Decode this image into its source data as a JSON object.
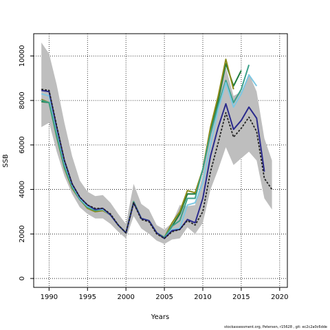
{
  "chart_data": {
    "type": "line",
    "title": "",
    "xlabel": "Years",
    "ylabel": "SSB",
    "xlim": [
      1988,
      2021
    ],
    "ylim": [
      -400,
      11000
    ],
    "x_ticks": [
      1990,
      1995,
      2000,
      2005,
      2010,
      2015,
      2020
    ],
    "y_ticks": [
      0,
      2000,
      4000,
      6000,
      8000,
      10000
    ],
    "grid": "dotted",
    "colors": {
      "band": "#bebebe",
      "grid": "#000000",
      "darkgreen": "#1b7a3c",
      "olive": "#8a8a1a",
      "teal": "#3aa08a",
      "lightblue": "#7ec8e3",
      "navy": "#2a2a8c",
      "black": "#222222"
    },
    "band": {
      "x": [
        1989,
        1990,
        1991,
        1992,
        1993,
        1994,
        1995,
        1996,
        1997,
        1998,
        1999,
        2000,
        2001,
        2002,
        2003,
        2004,
        2005,
        2006,
        2007,
        2008,
        2009,
        2010,
        2011,
        2012,
        2013,
        2014,
        2015,
        2016,
        2017,
        2018,
        2019
      ],
      "upper": [
        10600,
        10100,
        8700,
        7000,
        5500,
        4400,
        3900,
        3700,
        3750,
        3400,
        2900,
        2450,
        4250,
        3350,
        3100,
        2400,
        2200,
        2500,
        3300,
        3250,
        3300,
        4700,
        6800,
        8200,
        9500,
        8200,
        8400,
        9200,
        8400,
        6300,
        5300
      ],
      "lower": [
        6800,
        7000,
        5700,
        4600,
        3800,
        3200,
        2900,
        2700,
        2700,
        2450,
        2100,
        1800,
        2800,
        2250,
        2000,
        1700,
        1550,
        1750,
        1800,
        2300,
        2000,
        2500,
        4000,
        4900,
        5900,
        5100,
        5400,
        5700,
        5300,
        3600,
        3100
      ]
    },
    "series": [
      {
        "color": "darkgreen",
        "x": [
          1989,
          1990,
          1991,
          1992,
          1993,
          1994,
          1995,
          1996,
          1997,
          1998,
          1999,
          2000,
          2001,
          2002,
          2003,
          2004,
          2005,
          2006,
          2007,
          2008,
          2009,
          2010,
          2011,
          2012,
          2013,
          2014,
          2015
        ],
        "values": [
          7950,
          7900,
          6400,
          5000,
          4100,
          3550,
          3200,
          3050,
          3100,
          2850,
          2400,
          2050,
          3450,
          2700,
          2600,
          2050,
          1850,
          2350,
          2900,
          3800,
          3800,
          4900,
          6700,
          8000,
          9650,
          8650,
          9350
        ]
      },
      {
        "color": "olive",
        "x": [
          1989,
          1990,
          1991,
          1992,
          1993,
          1994,
          1995,
          1996,
          1997,
          1998,
          1999,
          2000,
          2001,
          2002,
          2003,
          2004,
          2005,
          2006,
          2007,
          2008,
          2009,
          2010,
          2011,
          2012,
          2013,
          2014
        ],
        "values": [
          8050,
          7900,
          6350,
          4950,
          4050,
          3550,
          3150,
          3000,
          3050,
          2850,
          2400,
          2050,
          3450,
          2700,
          2600,
          2050,
          1850,
          2500,
          3000,
          3950,
          3850,
          4900,
          6800,
          8200,
          9850,
          8500
        ]
      },
      {
        "color": "teal",
        "x": [
          1989,
          1990,
          1991,
          1992,
          1993,
          1994,
          1995,
          1996,
          1997,
          1998,
          1999,
          2000,
          2001,
          2002,
          2003,
          2004,
          2005,
          2006,
          2007,
          2008,
          2009,
          2010,
          2011,
          2012,
          2013,
          2014,
          2015,
          2016
        ],
        "values": [
          8000,
          7900,
          6400,
          5000,
          4100,
          3550,
          3200,
          3050,
          3100,
          2850,
          2400,
          2050,
          3450,
          2700,
          2600,
          2050,
          1850,
          2350,
          2600,
          3600,
          3600,
          4900,
          6500,
          7800,
          8900,
          7900,
          8500,
          9600
        ]
      },
      {
        "color": "lightblue",
        "x": [
          1989,
          1990,
          1991,
          1992,
          1993,
          1994,
          1995,
          1996,
          1997,
          1998,
          1999,
          2000,
          2001,
          2002,
          2003,
          2004,
          2005,
          2006,
          2007,
          2008,
          2009,
          2010,
          2011,
          2012,
          2013,
          2014,
          2015,
          2016,
          2017
        ],
        "values": [
          8300,
          8200,
          6700,
          5200,
          4200,
          3600,
          3250,
          3100,
          3100,
          2850,
          2400,
          2050,
          3400,
          2700,
          2600,
          2050,
          1800,
          2200,
          2250,
          3300,
          3400,
          4300,
          6000,
          7600,
          8800,
          7700,
          8300,
          9150,
          8650
        ]
      },
      {
        "color": "navy",
        "x": [
          1989,
          1990,
          1991,
          1992,
          1993,
          1994,
          1995,
          1996,
          1997,
          1998,
          1999,
          2000,
          2001,
          2002,
          2003,
          2004,
          2005,
          2006,
          2007,
          2008,
          2009,
          2010,
          2011,
          2012,
          2013,
          2014,
          2015,
          2016,
          2017,
          2018
        ],
        "values": [
          8450,
          8400,
          6800,
          5300,
          4250,
          3650,
          3300,
          3100,
          3150,
          2850,
          2400,
          2050,
          3400,
          2700,
          2600,
          2050,
          1800,
          2150,
          2200,
          2650,
          2500,
          3600,
          5500,
          6800,
          7850,
          6700,
          7100,
          7700,
          7200,
          4800
        ]
      },
      {
        "color": "black",
        "dashed": true,
        "x": [
          1989,
          1990,
          1991,
          1992,
          1993,
          1994,
          1995,
          1996,
          1997,
          1998,
          1999,
          2000,
          2001,
          2002,
          2003,
          2004,
          2005,
          2006,
          2007,
          2008,
          2009,
          2010,
          2011,
          2012,
          2013,
          2014,
          2015,
          2016,
          2017,
          2018,
          2019
        ],
        "values": [
          8500,
          8450,
          6850,
          5300,
          4250,
          3650,
          3300,
          3150,
          3150,
          2900,
          2400,
          2050,
          3400,
          2650,
          2550,
          2000,
          1800,
          2100,
          2200,
          2600,
          2400,
          3000,
          4800,
          6100,
          7450,
          6350,
          6750,
          7250,
          6600,
          4500,
          4000
        ]
      }
    ]
  },
  "footer": "stockassessment.org, Petersen, r15628 , git: ec2c2a0c6dde"
}
